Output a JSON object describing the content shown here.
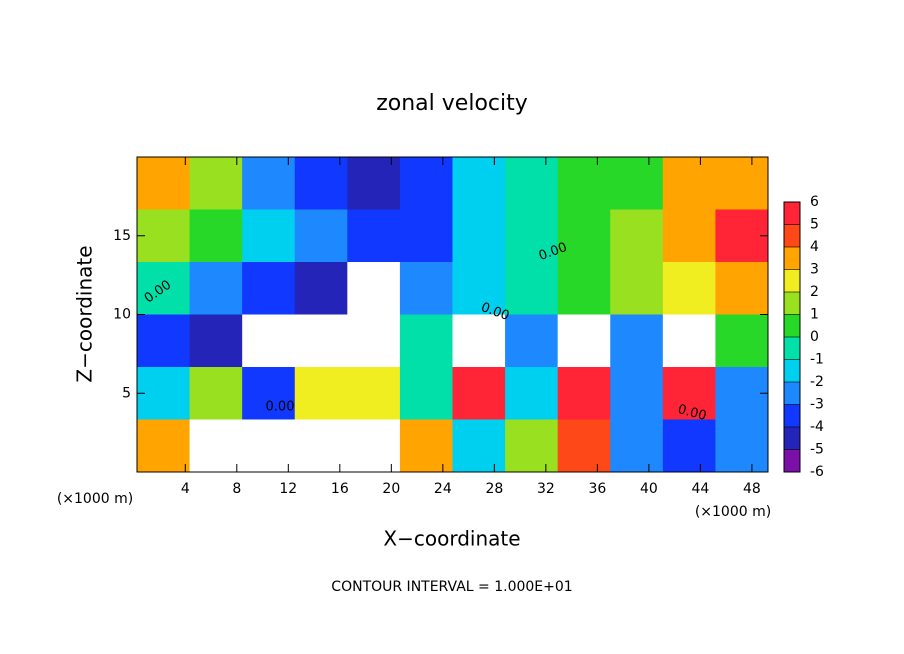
{
  "chart_data": {
    "type": "heatmap",
    "title": "zonal velocity",
    "x_label": "X−coordinate",
    "y_label": "Z−coordinate",
    "x_unit": "(×1000 m)",
    "footer": "CONTOUR INTERVAL = 1.000E+01",
    "annotations": [
      "0.00",
      "0.00",
      "0.00",
      "0.00",
      "0.00"
    ],
    "xlim": [
      0.25,
      49.25
    ],
    "ylim": [
      0,
      20
    ],
    "xticks": [
      4,
      8,
      12,
      16,
      20,
      24,
      28,
      32,
      36,
      40,
      44,
      48
    ],
    "yticks": [
      5,
      10,
      15
    ],
    "z": [
      [
        3,
        1,
        -3,
        -4,
        -5,
        -4,
        -2,
        -1,
        0,
        0,
        3,
        3
      ],
      [
        1,
        0,
        -2,
        -3,
        -4,
        -4,
        -2,
        -1,
        0,
        1,
        3,
        5
      ],
      [
        -1,
        -3,
        -4,
        -5,
        7,
        -3,
        -2,
        -1,
        0,
        1,
        2,
        3
      ],
      [
        -4,
        -5,
        7,
        7,
        7,
        -1,
        7,
        -3,
        7,
        -3,
        7,
        0
      ],
      [
        -2,
        1,
        -4,
        2,
        2,
        -1,
        5,
        -2,
        5,
        -3,
        5,
        -3
      ],
      [
        3,
        7,
        7,
        7,
        7,
        3,
        -2,
        1,
        4,
        -3,
        -4,
        -3
      ]
    ],
    "colorbar_ticks": [
      -6,
      -5,
      -4,
      -3,
      -2,
      -1,
      0,
      1,
      2,
      3,
      4,
      5,
      6
    ],
    "colors": [
      "#7a10a8",
      "#2424b8",
      "#1038ff",
      "#1e88ff",
      "#00d0f0",
      "#00e0a8",
      "#28d828",
      "#98e020",
      "#f0ee20",
      "#ffa400",
      "#ff4818",
      "#ff2436"
    ],
    "over_color": "#ffffff"
  }
}
